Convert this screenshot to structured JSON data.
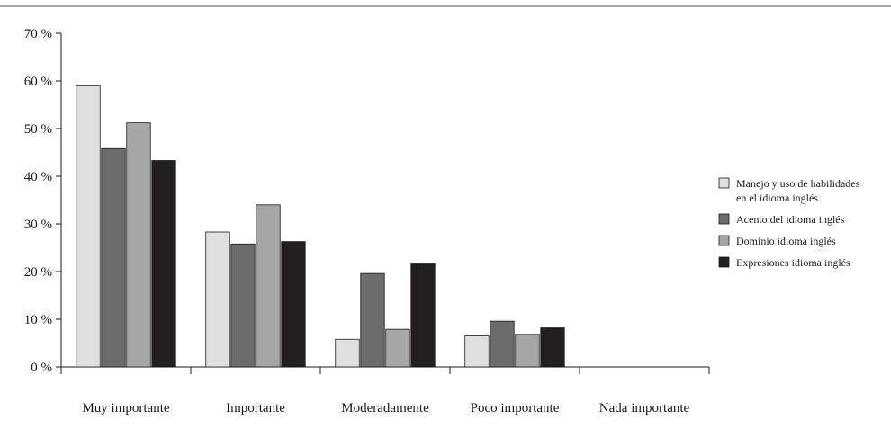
{
  "chart_data": {
    "type": "bar",
    "categories": [
      "Muy importante",
      "Importante",
      "Moderadamente",
      "Poco importante",
      "Nada importante"
    ],
    "series": [
      {
        "name": "Manejo y uso de habilidades en el idioma inglés",
        "legend_lines": [
          "Manejo y uso de habilidades",
          "en el idioma inglés"
        ],
        "color": "#e0e0e0",
        "values": [
          59,
          28.3,
          5.8,
          6.5,
          0
        ]
      },
      {
        "name": "Acento del idioma inglés",
        "legend_lines": [
          "Acento del idioma inglés"
        ],
        "color": "#6c6c6c",
        "values": [
          45.8,
          25.8,
          19.6,
          9.6,
          0
        ]
      },
      {
        "name": "Dominio idioma inglés",
        "legend_lines": [
          "Dominio idioma inglés"
        ],
        "color": "#a6a6a6",
        "values": [
          51.2,
          34,
          7.9,
          6.8,
          0
        ]
      },
      {
        "name": "Expresiones idioma inglés",
        "legend_lines": [
          "Expresiones idioma inglés"
        ],
        "color": "#231f20",
        "values": [
          43.3,
          26.3,
          21.6,
          8.2,
          0
        ]
      }
    ],
    "ylim": [
      0,
      70
    ],
    "yticks": [
      0,
      10,
      20,
      30,
      40,
      50,
      60,
      70
    ],
    "ytick_labels": [
      "0 %",
      "10 %",
      "20 %",
      "30 %",
      "40 %",
      "50 %",
      "60 %",
      "70 %"
    ],
    "xlabel": "",
    "ylabel": "",
    "legend_position": "right",
    "grid": false
  }
}
